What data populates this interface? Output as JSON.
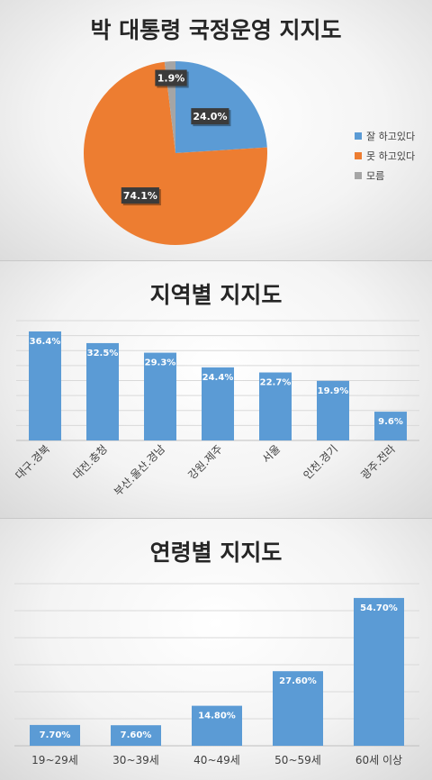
{
  "chart_data": [
    {
      "type": "pie",
      "title": "박 대통령 국정운영 지지도",
      "categories": [
        "잘 하고있다",
        "못 하고있다",
        "모름"
      ],
      "values": [
        24.0,
        74.1,
        1.9
      ],
      "labels": [
        "24.0%",
        "74.1%",
        "1.9%"
      ],
      "colors": [
        "#5b9bd5",
        "#ed7d31",
        "#a5a5a5"
      ],
      "legend": "right"
    },
    {
      "type": "bar",
      "title": "지역별 지지도",
      "categories": [
        "대구.경북",
        "대전.충청",
        "부산.울산.경남",
        "강원.제주",
        "서울",
        "인천.경기",
        "광주.전라"
      ],
      "values": [
        36.4,
        32.5,
        29.3,
        24.4,
        22.7,
        19.9,
        9.6
      ],
      "labels": [
        "36.4%",
        "32.5%",
        "29.3%",
        "24.4%",
        "22.7%",
        "19.9%",
        "9.6%"
      ],
      "ylim": [
        0,
        40
      ],
      "grid": true,
      "color": "#5b9bd5"
    },
    {
      "type": "bar",
      "title": "연령별 지지도",
      "categories": [
        "19~29세",
        "30~39세",
        "40~49세",
        "50~59세",
        "60세 이상"
      ],
      "values": [
        7.7,
        7.6,
        14.8,
        27.6,
        54.7
      ],
      "labels": [
        "7.70%",
        "7.60%",
        "14.80%",
        "27.60%",
        "54.70%"
      ],
      "ylim": [
        0,
        60
      ],
      "grid": true,
      "color": "#5b9bd5"
    }
  ]
}
